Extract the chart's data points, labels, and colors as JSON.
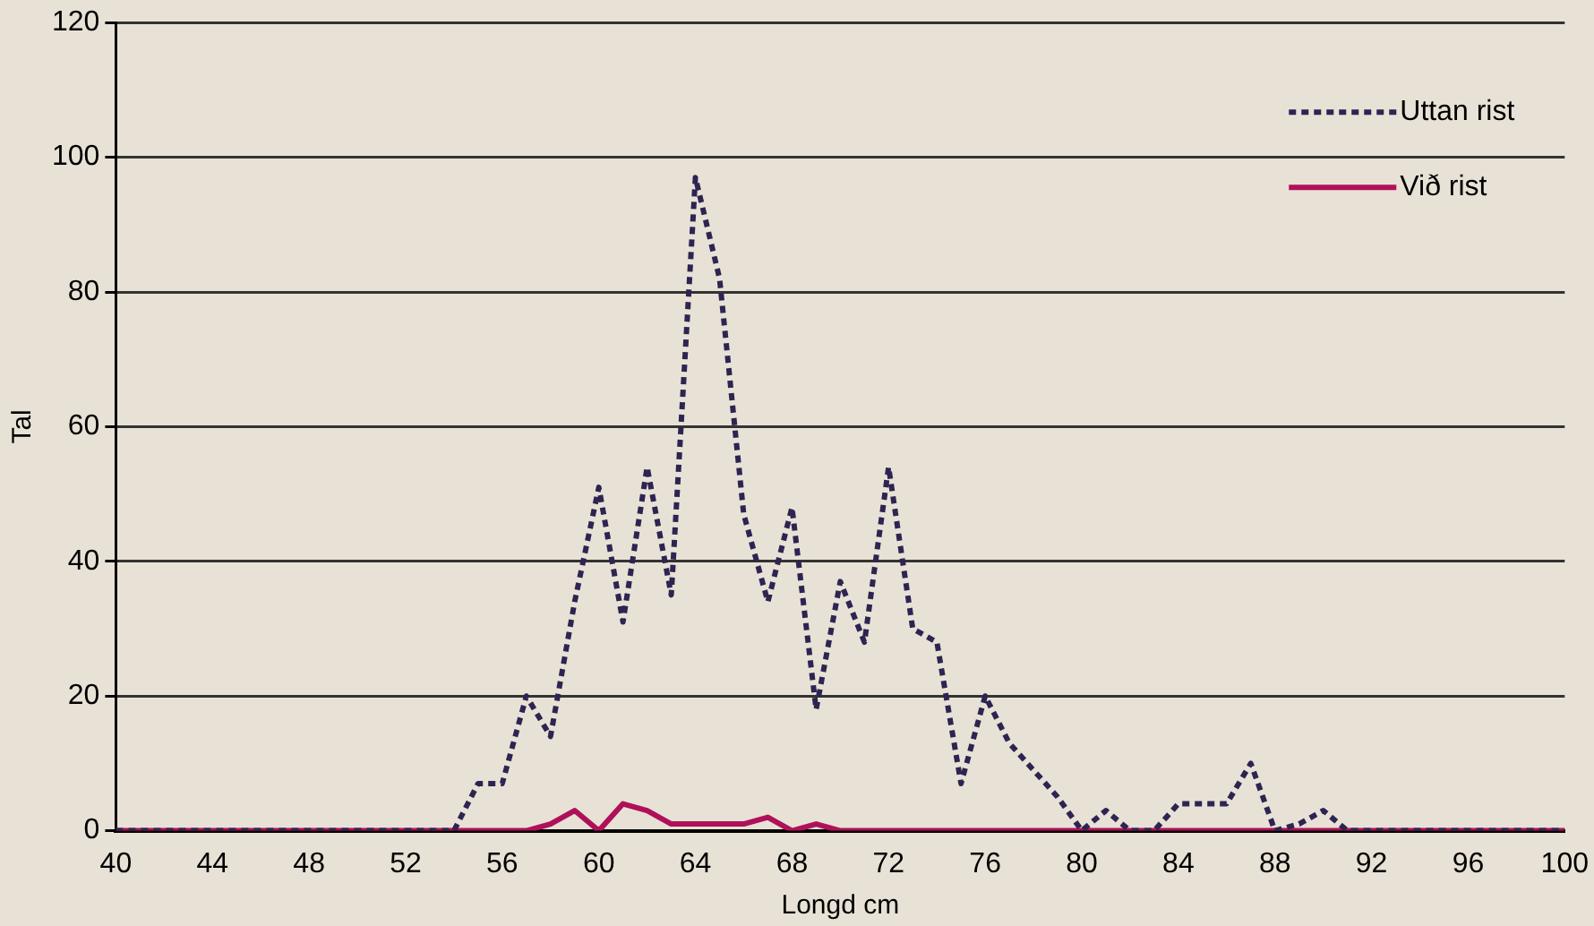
{
  "chart_data": {
    "type": "line",
    "xlabel": "Longd cm",
    "ylabel": "Tal",
    "x": [
      40,
      41,
      42,
      43,
      44,
      45,
      46,
      47,
      48,
      49,
      50,
      51,
      52,
      53,
      54,
      55,
      56,
      57,
      58,
      59,
      60,
      61,
      62,
      63,
      64,
      65,
      66,
      67,
      68,
      69,
      70,
      71,
      72,
      73,
      74,
      75,
      76,
      77,
      78,
      79,
      80,
      81,
      82,
      83,
      84,
      85,
      86,
      87,
      88,
      89,
      90,
      91,
      92,
      93,
      94,
      95,
      96,
      97,
      98,
      99,
      100
    ],
    "series": [
      {
        "name": "Uttan rist",
        "color": "#2e2452",
        "line_style": "dotted",
        "values": [
          0,
          0,
          0,
          0,
          0,
          0,
          0,
          0,
          0,
          0,
          0,
          0,
          0,
          0,
          0,
          7,
          7,
          20,
          14,
          34,
          51,
          31,
          54,
          35,
          97,
          82,
          47,
          34,
          48,
          18,
          37,
          28,
          54,
          30,
          28,
          7,
          20,
          13,
          9,
          5,
          0,
          3,
          0,
          0,
          4,
          4,
          4,
          10,
          0,
          1,
          3,
          0,
          0,
          0,
          0,
          0,
          0,
          0,
          0,
          0,
          0
        ]
      },
      {
        "name": "Við rist",
        "color": "#b0105a",
        "line_style": "solid",
        "values": [
          0,
          0,
          0,
          0,
          0,
          0,
          0,
          0,
          0,
          0,
          0,
          0,
          0,
          0,
          0,
          0,
          0,
          0,
          1,
          3,
          0,
          4,
          3,
          1,
          1,
          1,
          1,
          2,
          0,
          1,
          0,
          0,
          0,
          0,
          0,
          0,
          0,
          0,
          0,
          0,
          0,
          0,
          0,
          0,
          0,
          0,
          0,
          0,
          0,
          0,
          0,
          0,
          0,
          0,
          0,
          0,
          0,
          0,
          0,
          0,
          0
        ]
      }
    ],
    "xlim": [
      40,
      100
    ],
    "xticks": [
      40,
      44,
      48,
      52,
      56,
      60,
      64,
      68,
      72,
      76,
      80,
      84,
      88,
      92,
      96,
      100
    ],
    "ylim": [
      0,
      120
    ],
    "yticks": [
      0,
      20,
      40,
      60,
      80,
      100,
      120
    ],
    "grid": "y",
    "legend": "top right",
    "marker": "none"
  }
}
